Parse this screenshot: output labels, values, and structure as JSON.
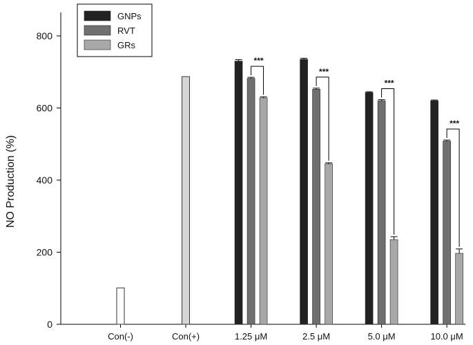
{
  "chart_data": {
    "type": "bar",
    "ylabel": "NO Production (%)",
    "xlabel": "",
    "ylim": [
      0,
      800
    ],
    "yticks": [
      0,
      200,
      400,
      600,
      800
    ],
    "grid": false,
    "legend_position": "top-left",
    "categories": [
      "Con(-)",
      "Con(+)",
      "1.25 μM",
      "2.5 μM",
      "5.0 μM",
      "10.0 μM"
    ],
    "controls": [
      {
        "category": "Con(-)",
        "value": 101,
        "color": "#ffffff"
      },
      {
        "category": "Con(+)",
        "value": 687,
        "color": "#d6d6d6"
      }
    ],
    "series": [
      {
        "name": "GNPs",
        "color": "#222222",
        "values": [
          null,
          null,
          730,
          735,
          643,
          620
        ],
        "errors": [
          null,
          null,
          4,
          3,
          2,
          2
        ]
      },
      {
        "name": "RVT",
        "color": "#707070",
        "values": [
          null,
          null,
          682,
          652,
          620,
          508
        ],
        "errors": [
          null,
          null,
          3,
          3,
          3,
          3
        ]
      },
      {
        "name": "GRs",
        "color": "#a8a8a8",
        "values": [
          null,
          null,
          628,
          445,
          235,
          197
        ],
        "errors": [
          null,
          null,
          3,
          3,
          8,
          12
        ]
      }
    ],
    "significance": [
      {
        "category": "1.25 μM",
        "label": "***"
      },
      {
        "category": "2.5 μM",
        "label": "***"
      },
      {
        "category": "5.0 μM",
        "label": "***"
      },
      {
        "category": "10.0 μM",
        "label": "***"
      }
    ]
  }
}
